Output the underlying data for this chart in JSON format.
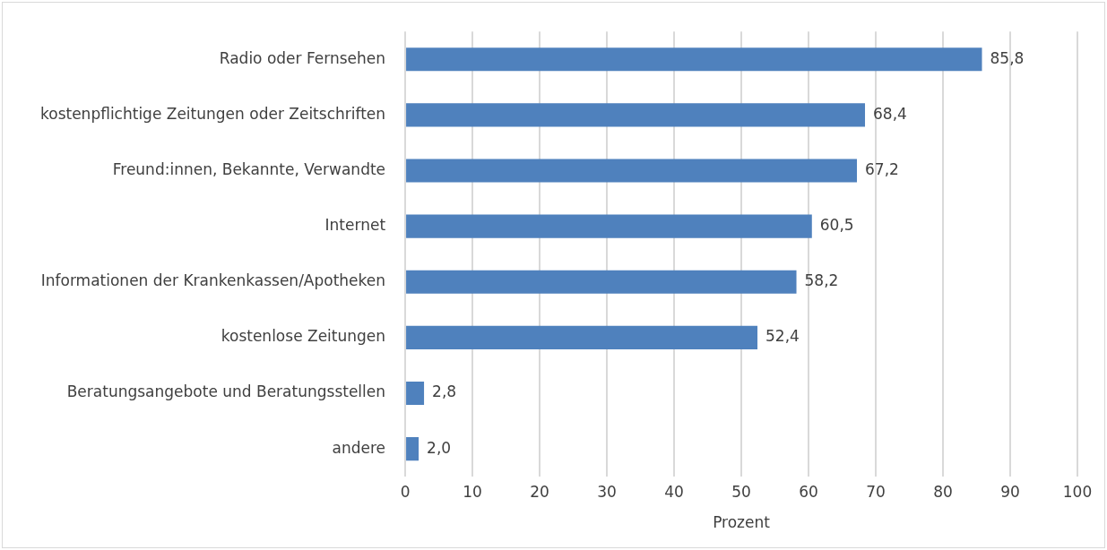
{
  "chart_data": {
    "type": "bar",
    "orientation": "horizontal",
    "categories": [
      "Radio oder Fernsehen",
      "kostenpflichtige Zeitungen oder Zeitschriften",
      "Freund:innen, Bekannte, Verwandte",
      "Internet",
      "Informationen der Krankenkassen/Apotheken",
      "kostenlose Zeitungen",
      "Beratungsangebote und Beratungsstellen",
      "andere"
    ],
    "values": [
      85.8,
      68.4,
      67.2,
      60.5,
      58.2,
      52.4,
      2.8,
      2.0
    ],
    "value_labels": [
      "85,8",
      "68,4",
      "67,2",
      "60,5",
      "58,2",
      "52,4",
      "2,8",
      "2,0"
    ],
    "color": "#4f81bd",
    "xlim": [
      0,
      100
    ],
    "xticks": [
      0,
      10,
      20,
      30,
      40,
      50,
      60,
      70,
      80,
      90,
      100
    ],
    "xlabel": "Prozent",
    "grid": "x"
  }
}
